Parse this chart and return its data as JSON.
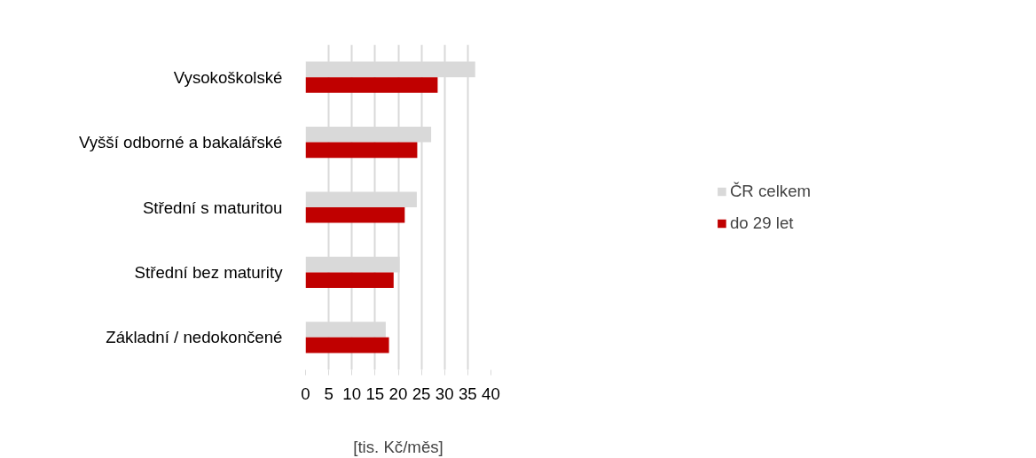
{
  "chart_data": {
    "type": "bar",
    "orientation": "horizontal",
    "xlabel": "[tis. Kč/měs]",
    "categories": [
      "Vysokoškolské",
      "Vyšší odborné a bakalářské",
      "Střední s maturitou",
      "Střední bez maturity",
      "Základní / nedokončené"
    ],
    "series": [
      {
        "name": "ČR celkem",
        "color": "#d9d9d9",
        "values": [
          36.6,
          27.1,
          24.0,
          20.3,
          17.3
        ]
      },
      {
        "name": "do 29 let",
        "color": "#c00000",
        "values": [
          28.5,
          24.1,
          21.4,
          19.0,
          18.0
        ]
      }
    ],
    "xlim": [
      0,
      40
    ],
    "xticks": [
      0,
      5,
      10,
      15,
      20,
      25,
      30,
      35,
      40
    ],
    "grid": "x",
    "legend": "right"
  }
}
